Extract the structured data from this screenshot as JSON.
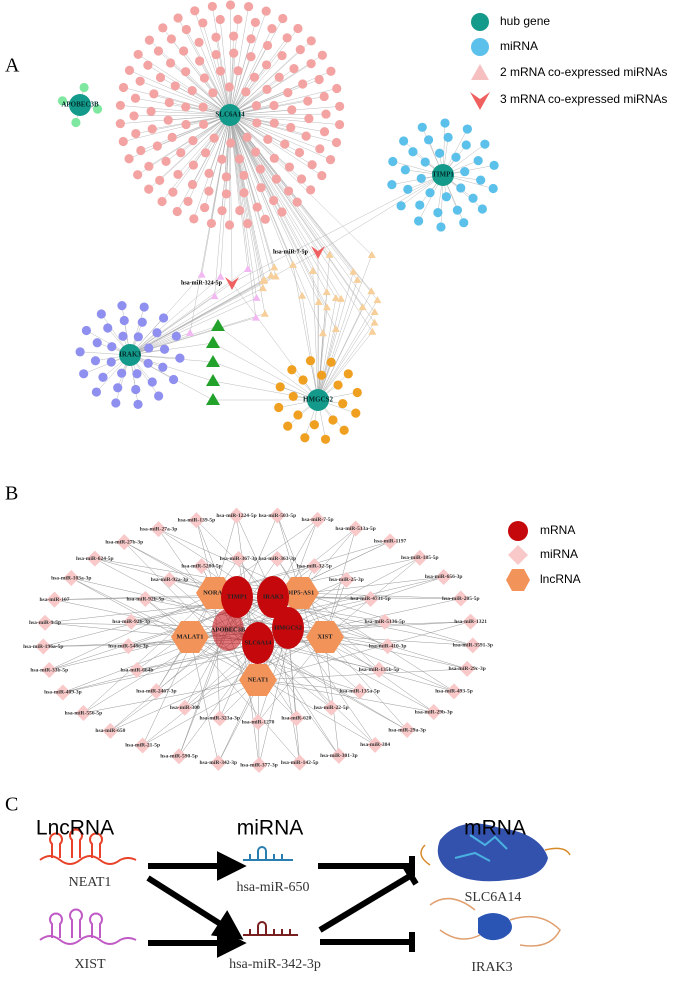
{
  "panels": {
    "a": {
      "label": "A",
      "legend": [
        "hub gene",
        "miRNA",
        "2 mRNA co-expressed miRNAs",
        "3 mRNA co-expressed miRNAs"
      ],
      "hubs": [
        "SLC6A14",
        "APOBEC3B",
        "TIMP1",
        "IRAK3",
        "HMGCS2"
      ],
      "highlight_mirnas": [
        "hsa-miR-7-5p",
        "hsa-miR-324-5p"
      ]
    },
    "b": {
      "label": "B",
      "legend": [
        "mRNA",
        "miRNA",
        "lncRNA"
      ],
      "mrna": [
        "TIMP1",
        "IRAK3",
        "APOBEC3B",
        "HMGCS2",
        "SLC6A14"
      ],
      "lncrna": [
        "NORAD",
        "OIP5-AS1",
        "MALAT1",
        "XIST",
        "NEAT1"
      ],
      "mirna_outer": [
        "hsa-miR-1224-5p",
        "hsa-miR-503-5p",
        "hsa-miR-7-5p",
        "hsa-miR-513a-5p",
        "hsa-miR-1197",
        "hsa-miR-185-5p",
        "hsa-miR-656-3p",
        "hsa-miR-205-5p",
        "hsa-miR-1321",
        "hsa-miR-3591-3p",
        "hsa-miR-29c-3p",
        "hsa-miR-493-5p",
        "hsa-miR-29b-3p",
        "hsa-miR-29a-3p",
        "hsa-miR-384",
        "hsa-miR-301-3p",
        "hsa-miR-142-5p",
        "hsa-miR-377-3p",
        "hsa-miR-342-3p",
        "hsa-miR-590-5p",
        "hsa-miR-21-5p",
        "hsa-miR-650",
        "hsa-miR-556-5p",
        "hsa-miR-409-3p",
        "hsa-miR-33b-5p",
        "hsa-miR-196a-5p",
        "hsa-miR-9-5p",
        "hsa-miR-107",
        "hsa-miR-103a-3p",
        "hsa-miR-624-5p",
        "hsa-miR-27b-3p",
        "hsa-miR-27a-3p",
        "hsa-miR-139-5p"
      ],
      "mirna_inner": [
        "hsa-miR-367-3p",
        "hsa-miR-363-3p",
        "hsa-miR-32-5p",
        "hsa-miR-25-3p",
        "hsa-miR-4731-5p",
        "hsa-miR-5136-5p",
        "hsa-miR-410-3p",
        "hsa-miR-135b-5p",
        "hsa-miR-135a-5p",
        "hsa-miR-22-5p",
        "hsa-miR-620",
        "hsa-miR-1270",
        "hsa-miR-323a-3p",
        "hsa-miR-300",
        "hsa-miR-2467-3p",
        "hsa-miR-664b",
        "hsa-miR-548o-3p",
        "hsa-miR-92b-3p",
        "hsa-miR-92b-5p",
        "hsa-miR-92a-3p",
        "hsa-miR-5280-5p"
      ]
    },
    "c": {
      "label": "C",
      "headers": [
        "LncRNA",
        "miRNA",
        "mRNA"
      ],
      "lncrnas": [
        "NEAT1",
        "XIST"
      ],
      "mirnas": [
        "hsa-miR-650",
        "hsa-miR-342-3p"
      ],
      "mrnas": [
        "SLC6A14",
        "IRAK3"
      ]
    }
  }
}
